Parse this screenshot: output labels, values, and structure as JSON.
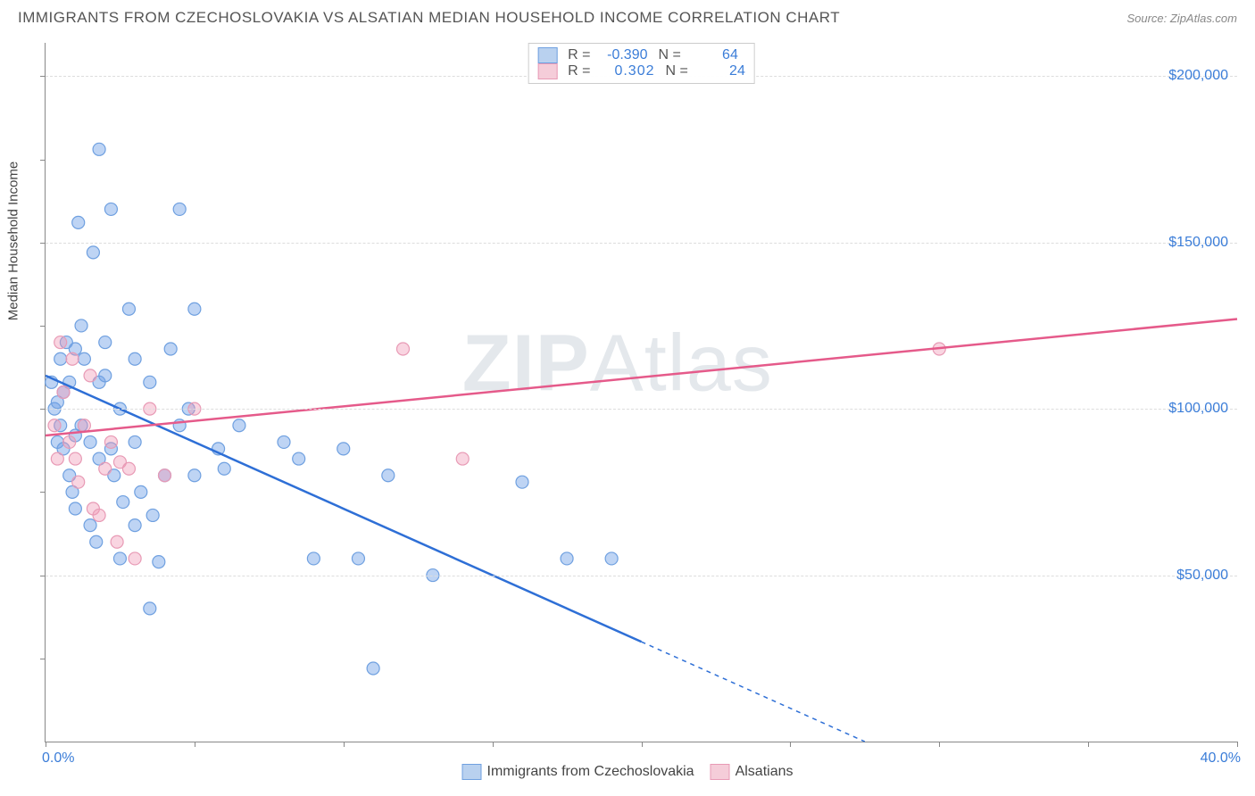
{
  "title": "IMMIGRANTS FROM CZECHOSLOVAKIA VS ALSATIAN MEDIAN HOUSEHOLD INCOME CORRELATION CHART",
  "source_prefix": "Source: ",
  "source_name": "ZipAtlas.com",
  "watermark_bold": "ZIP",
  "watermark_light": "Atlas",
  "y_axis": {
    "label": "Median Household Income",
    "min": 0,
    "max": 210000,
    "ticks": [
      50000,
      100000,
      150000,
      200000
    ],
    "tick_labels": [
      "$50,000",
      "$100,000",
      "$150,000",
      "$200,000"
    ],
    "minor_ticks": [
      25000,
      75000,
      125000,
      175000
    ]
  },
  "x_axis": {
    "min": 0,
    "max": 40,
    "left_label": "0.0%",
    "right_label": "40.0%",
    "tick_positions": [
      0,
      5,
      10,
      15,
      20,
      25,
      30,
      35,
      40
    ]
  },
  "series": [
    {
      "name": "Immigrants from Czechoslovakia",
      "color_fill": "rgba(110,160,230,0.45)",
      "color_stroke": "#6fa0e0",
      "line_color": "#2e6fd6",
      "swatch_fill": "#b9d1ef",
      "swatch_border": "#6fa0e0",
      "r_value": "-0.390",
      "n_value": "64",
      "trend": {
        "x1": 0,
        "y1": 110000,
        "x2_solid": 20,
        "y2_solid": 30000,
        "x2_dash": 27.5,
        "y2_dash": 0
      },
      "points": [
        [
          0.2,
          108000
        ],
        [
          0.3,
          100000
        ],
        [
          0.4,
          102000
        ],
        [
          0.4,
          90000
        ],
        [
          0.5,
          115000
        ],
        [
          0.5,
          95000
        ],
        [
          0.6,
          105000
        ],
        [
          0.6,
          88000
        ],
        [
          0.7,
          120000
        ],
        [
          0.8,
          108000
        ],
        [
          0.8,
          80000
        ],
        [
          0.9,
          75000
        ],
        [
          1.0,
          118000
        ],
        [
          1.0,
          92000
        ],
        [
          1.0,
          70000
        ],
        [
          1.1,
          156000
        ],
        [
          1.2,
          95000
        ],
        [
          1.3,
          115000
        ],
        [
          1.5,
          90000
        ],
        [
          1.5,
          65000
        ],
        [
          1.6,
          147000
        ],
        [
          1.7,
          60000
        ],
        [
          1.8,
          178000
        ],
        [
          1.8,
          108000
        ],
        [
          1.8,
          85000
        ],
        [
          2.0,
          110000
        ],
        [
          2.0,
          120000
        ],
        [
          2.2,
          160000
        ],
        [
          2.2,
          88000
        ],
        [
          2.3,
          80000
        ],
        [
          2.5,
          100000
        ],
        [
          2.5,
          55000
        ],
        [
          2.6,
          72000
        ],
        [
          2.8,
          130000
        ],
        [
          3.0,
          115000
        ],
        [
          3.0,
          90000
        ],
        [
          3.0,
          65000
        ],
        [
          3.2,
          75000
        ],
        [
          3.5,
          40000
        ],
        [
          3.5,
          108000
        ],
        [
          3.6,
          68000
        ],
        [
          4.0,
          80000
        ],
        [
          4.2,
          118000
        ],
        [
          4.5,
          160000
        ],
        [
          4.5,
          95000
        ],
        [
          4.8,
          100000
        ],
        [
          5.0,
          80000
        ],
        [
          5.0,
          130000
        ],
        [
          5.8,
          88000
        ],
        [
          6.0,
          82000
        ],
        [
          6.5,
          95000
        ],
        [
          8.0,
          90000
        ],
        [
          8.5,
          85000
        ],
        [
          9.0,
          55000
        ],
        [
          10.0,
          88000
        ],
        [
          10.5,
          55000
        ],
        [
          11.0,
          22000
        ],
        [
          11.5,
          80000
        ],
        [
          13.0,
          50000
        ],
        [
          16.0,
          78000
        ],
        [
          17.5,
          55000
        ],
        [
          19.0,
          55000
        ],
        [
          3.8,
          54000
        ],
        [
          1.2,
          125000
        ]
      ]
    },
    {
      "name": "Alsatians",
      "color_fill": "rgba(240,150,180,0.40)",
      "color_stroke": "#e89ab5",
      "line_color": "#e55a8a",
      "swatch_fill": "#f5cdd9",
      "swatch_border": "#e89ab5",
      "r_value": "0.302",
      "n_value": "24",
      "trend": {
        "x1": 0,
        "y1": 92000,
        "x2_solid": 40,
        "y2_solid": 127000
      },
      "points": [
        [
          0.3,
          95000
        ],
        [
          0.4,
          85000
        ],
        [
          0.5,
          120000
        ],
        [
          0.6,
          105000
        ],
        [
          0.8,
          90000
        ],
        [
          0.9,
          115000
        ],
        [
          1.0,
          85000
        ],
        [
          1.1,
          78000
        ],
        [
          1.3,
          95000
        ],
        [
          1.5,
          110000
        ],
        [
          1.6,
          70000
        ],
        [
          1.8,
          68000
        ],
        [
          2.0,
          82000
        ],
        [
          2.2,
          90000
        ],
        [
          2.4,
          60000
        ],
        [
          2.5,
          84000
        ],
        [
          2.8,
          82000
        ],
        [
          3.0,
          55000
        ],
        [
          3.5,
          100000
        ],
        [
          4.0,
          80000
        ],
        [
          5.0,
          100000
        ],
        [
          12.0,
          118000
        ],
        [
          14.0,
          85000
        ],
        [
          30.0,
          118000
        ]
      ]
    }
  ],
  "legend_text": {
    "r": "R =",
    "n": "N ="
  },
  "colors": {
    "grid": "#dddddd",
    "axis": "#888888",
    "axis_text": "#3b7dd8",
    "title": "#555555"
  },
  "marker_radius": 7,
  "marker_stroke_width": 1.2,
  "trend_line_width": 2.5
}
